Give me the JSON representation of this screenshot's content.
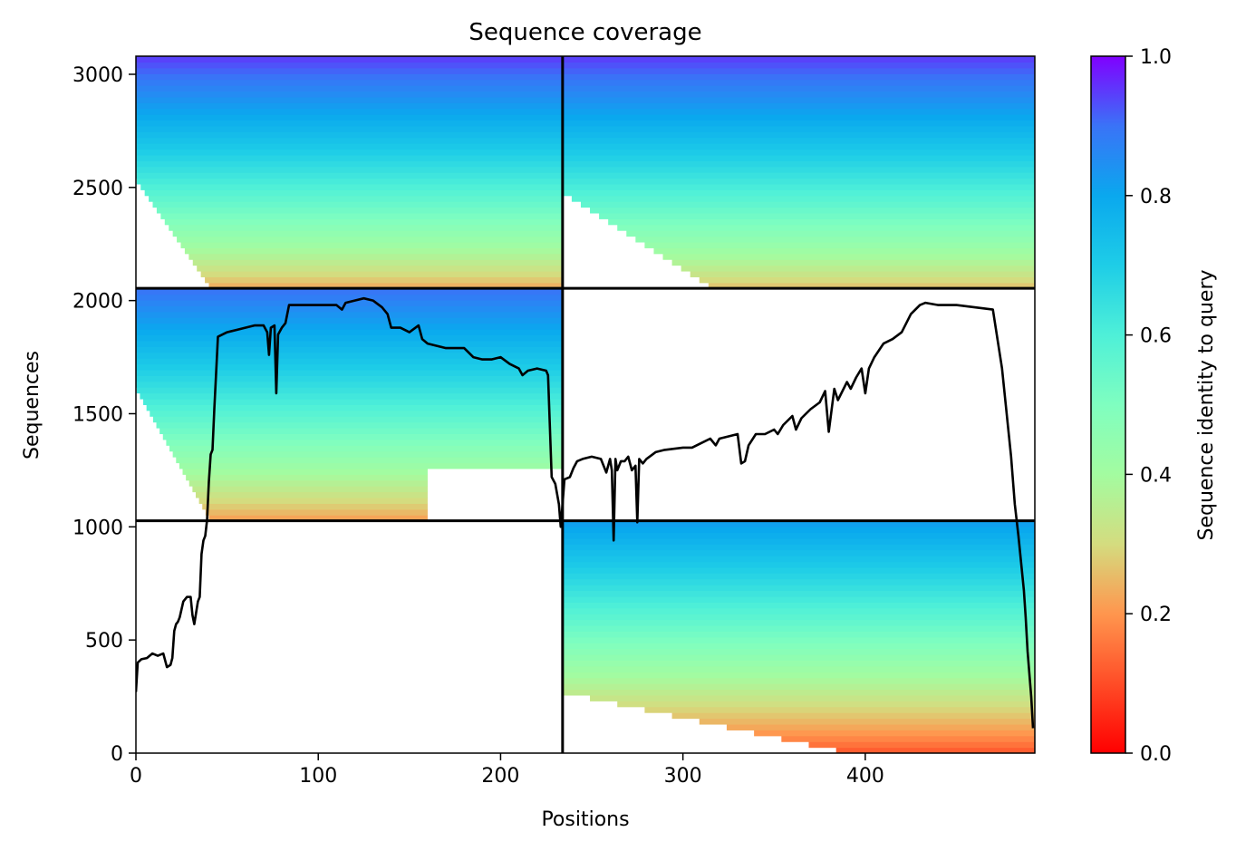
{
  "chart_data": {
    "type": "heatmap",
    "title": "Sequence coverage",
    "xlabel": "Positions",
    "ylabel": "Sequences",
    "xlim": [
      0,
      493
    ],
    "ylim": [
      0,
      3080
    ],
    "x_ticks": [
      0,
      100,
      200,
      300,
      400
    ],
    "y_ticks": [
      0,
      500,
      1000,
      1500,
      2000,
      2500,
      3000
    ],
    "colorbar": {
      "label": "Sequence identity to query",
      "range": [
        0.0,
        1.0
      ],
      "ticks": [
        0.0,
        0.2,
        0.4,
        0.6,
        0.8,
        1.0
      ],
      "tick_labels": [
        "0.0",
        "0.2",
        "0.4",
        "0.6",
        "0.8",
        "1.0"
      ],
      "colormap": "rainbow_r"
    },
    "block_dividers": {
      "x": 234,
      "y": [
        1027,
        2054
      ]
    },
    "blocks": [
      {
        "name": "top-left",
        "x_range": [
          0,
          234
        ],
        "y_range": [
          2054,
          3080
        ],
        "identity_top": 0.95,
        "identity_bottom": 0.22
      },
      {
        "name": "top-right",
        "x_range": [
          234,
          493
        ],
        "y_range": [
          2054,
          3080
        ],
        "identity_top": 0.95,
        "identity_bottom": 0.25
      },
      {
        "name": "middle-left",
        "x_range": [
          0,
          234
        ],
        "y_range": [
          1027,
          2054
        ],
        "identity_top": 0.9,
        "identity_bottom": 0.2
      },
      {
        "name": "bottom-right",
        "x_range": [
          234,
          493
        ],
        "y_range": [
          0,
          1027
        ],
        "identity_top": 0.82,
        "identity_bottom": 0.1
      }
    ],
    "coverage_line": {
      "color": "#000000",
      "x": [
        0,
        1,
        3,
        6,
        9,
        12,
        15,
        17,
        19,
        20,
        21,
        22,
        23,
        24,
        26,
        28,
        30,
        31,
        32,
        33,
        34,
        35,
        36,
        37,
        38,
        39,
        40,
        41,
        42,
        43,
        45,
        50,
        55,
        60,
        65,
        70,
        72,
        73,
        74,
        76,
        77,
        78,
        80,
        82,
        84,
        90,
        100,
        110,
        113,
        115,
        120,
        125,
        130,
        135,
        138,
        140,
        145,
        150,
        155,
        157,
        160,
        165,
        170,
        175,
        180,
        185,
        190,
        195,
        200,
        205,
        210,
        212,
        215,
        220,
        225,
        226,
        228,
        230,
        232,
        233,
        234,
        235,
        238,
        240,
        242,
        245,
        250,
        255,
        258,
        260,
        261,
        262,
        263,
        264,
        266,
        268,
        270,
        272,
        274,
        275,
        276,
        278,
        280,
        285,
        290,
        300,
        305,
        310,
        315,
        318,
        320,
        325,
        330,
        332,
        334,
        336,
        340,
        345,
        350,
        352,
        355,
        360,
        362,
        365,
        370,
        375,
        378,
        380,
        383,
        385,
        390,
        392,
        395,
        398,
        400,
        402,
        405,
        410,
        415,
        420,
        425,
        430,
        433,
        440,
        450,
        460,
        470,
        475,
        480,
        482,
        483,
        484,
        485,
        486,
        487,
        488,
        489,
        490,
        491,
        492
      ],
      "y": [
        270,
        400,
        415,
        420,
        440,
        430,
        440,
        380,
        390,
        420,
        540,
        570,
        580,
        600,
        670,
        690,
        690,
        610,
        570,
        620,
        670,
        690,
        880,
        940,
        960,
        1030,
        1200,
        1320,
        1340,
        1520,
        1840,
        1860,
        1870,
        1880,
        1890,
        1890,
        1860,
        1760,
        1880,
        1890,
        1590,
        1850,
        1880,
        1900,
        1980,
        1980,
        1980,
        1980,
        1960,
        1990,
        2000,
        2010,
        2000,
        1970,
        1940,
        1880,
        1880,
        1860,
        1890,
        1830,
        1810,
        1800,
        1790,
        1790,
        1790,
        1750,
        1740,
        1740,
        1750,
        1720,
        1700,
        1670,
        1690,
        1700,
        1690,
        1670,
        1220,
        1190,
        1100,
        1000,
        1100,
        1210,
        1220,
        1260,
        1290,
        1300,
        1310,
        1300,
        1240,
        1300,
        1250,
        940,
        1300,
        1250,
        1290,
        1290,
        1310,
        1250,
        1270,
        1020,
        1300,
        1280,
        1300,
        1330,
        1340,
        1350,
        1350,
        1370,
        1390,
        1360,
        1390,
        1400,
        1410,
        1280,
        1290,
        1360,
        1410,
        1410,
        1430,
        1410,
        1450,
        1490,
        1430,
        1480,
        1520,
        1550,
        1600,
        1420,
        1610,
        1560,
        1640,
        1610,
        1660,
        1700,
        1590,
        1700,
        1750,
        1810,
        1830,
        1860,
        1940,
        1980,
        1990,
        1980,
        1980,
        1970,
        1960,
        1700,
        1310,
        1100,
        1030,
        960,
        880,
        800,
        720,
        600,
        450,
        350,
        250,
        110
      ]
    }
  }
}
